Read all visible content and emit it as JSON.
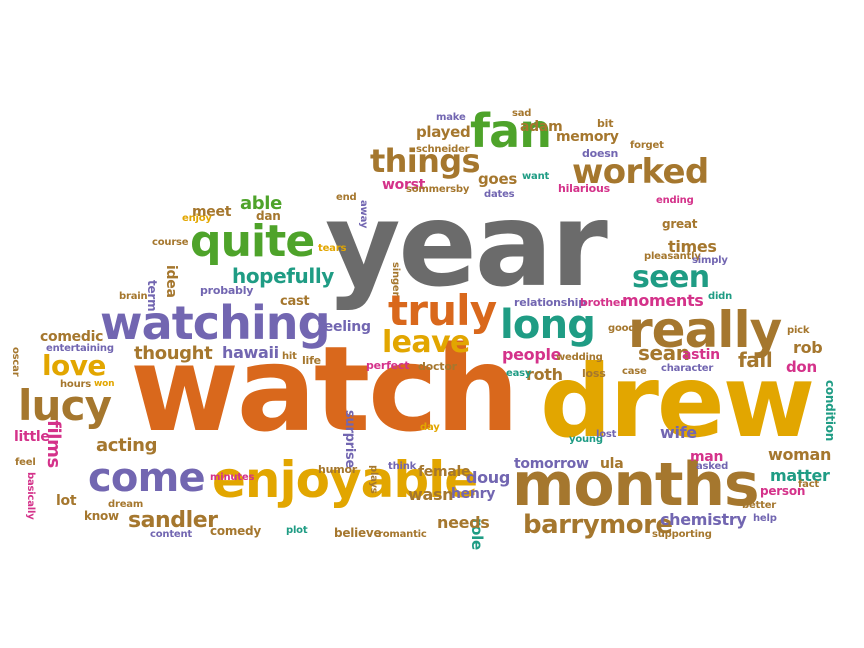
{
  "palette": {
    "gray": "#6b6b6b",
    "orange": "#d9681c",
    "gold": "#e2a600",
    "green": "#4ea32a",
    "purple": "#7266b1",
    "brown": "#a5772e",
    "teal": "#1f9c84",
    "pink": "#d4328a"
  },
  "words": [
    {
      "t": "year",
      "c": "gray"
    },
    {
      "t": "watch",
      "c": "orange"
    },
    {
      "t": "drew",
      "c": "gold"
    },
    {
      "t": "months",
      "c": "brown"
    },
    {
      "t": "enjoyable",
      "c": "gold"
    },
    {
      "t": "watching",
      "c": "purple"
    },
    {
      "t": "really",
      "c": "brown"
    },
    {
      "t": "fan",
      "c": "green"
    },
    {
      "t": "quite",
      "c": "green"
    },
    {
      "t": "long",
      "c": "teal"
    },
    {
      "t": "truly",
      "c": "orange"
    },
    {
      "t": "worked",
      "c": "brown"
    },
    {
      "t": "things",
      "c": "brown"
    },
    {
      "t": "come",
      "c": "purple"
    },
    {
      "t": "lucy",
      "c": "brown"
    },
    {
      "t": "love",
      "c": "gold"
    },
    {
      "t": "leave",
      "c": "gold"
    },
    {
      "t": "seen",
      "c": "teal"
    },
    {
      "t": "barrymore",
      "c": "brown"
    },
    {
      "t": "sandler",
      "c": "brown"
    },
    {
      "t": "sean",
      "c": "brown"
    },
    {
      "t": "hopefully",
      "c": "teal"
    },
    {
      "t": "able",
      "c": "green"
    },
    {
      "t": "thought",
      "c": "brown"
    },
    {
      "t": "acting",
      "c": "brown"
    },
    {
      "t": "films",
      "c": "pink"
    },
    {
      "t": "people",
      "c": "pink"
    },
    {
      "t": "moments",
      "c": "pink"
    },
    {
      "t": "played",
      "c": "brown"
    },
    {
      "t": "memory",
      "c": "brown"
    },
    {
      "t": "adam",
      "c": "brown"
    },
    {
      "t": "goes",
      "c": "brown"
    },
    {
      "t": "worst",
      "c": "pink"
    },
    {
      "t": "hawaii",
      "c": "purple"
    },
    {
      "t": "comedic",
      "c": "brown"
    },
    {
      "t": "fall",
      "c": "brown"
    },
    {
      "t": "rob",
      "c": "brown"
    },
    {
      "t": "don",
      "c": "pink"
    },
    {
      "t": "wife",
      "c": "purple"
    },
    {
      "t": "woman",
      "c": "brown"
    },
    {
      "t": "matter",
      "c": "teal"
    },
    {
      "t": "person",
      "c": "pink"
    },
    {
      "t": "chemistry",
      "c": "purple"
    },
    {
      "t": "role",
      "c": "teal"
    },
    {
      "t": "needs",
      "c": "brown"
    },
    {
      "t": "wasn",
      "c": "brown"
    },
    {
      "t": "doug",
      "c": "purple"
    },
    {
      "t": "henry",
      "c": "purple"
    },
    {
      "t": "female",
      "c": "brown"
    },
    {
      "t": "surprise",
      "c": "purple"
    },
    {
      "t": "roth",
      "c": "brown"
    },
    {
      "t": "astin",
      "c": "pink"
    },
    {
      "t": "tomorrow",
      "c": "purple"
    },
    {
      "t": "ula",
      "c": "brown"
    },
    {
      "t": "man",
      "c": "pink"
    },
    {
      "t": "feeling",
      "c": "purple"
    },
    {
      "t": "cast",
      "c": "brown"
    },
    {
      "t": "idea",
      "c": "brown"
    },
    {
      "t": "term",
      "c": "purple"
    },
    {
      "t": "meet",
      "c": "brown"
    },
    {
      "t": "dan",
      "c": "brown"
    },
    {
      "t": "times",
      "c": "brown"
    },
    {
      "t": "great",
      "c": "brown"
    },
    {
      "t": "little",
      "c": "pink"
    },
    {
      "t": "lot",
      "c": "brown"
    },
    {
      "t": "know",
      "c": "brown"
    },
    {
      "t": "comedy",
      "c": "brown"
    },
    {
      "t": "believe",
      "c": "brown"
    },
    {
      "t": "condition",
      "c": "teal"
    },
    {
      "t": "bit",
      "c": "brown"
    },
    {
      "t": "forget",
      "c": "brown"
    },
    {
      "t": "doesn",
      "c": "purple"
    },
    {
      "t": "sad",
      "c": "brown"
    },
    {
      "t": "make",
      "c": "purple"
    },
    {
      "t": "schneider",
      "c": "brown"
    },
    {
      "t": "sommersby",
      "c": "brown"
    },
    {
      "t": "dates",
      "c": "purple"
    },
    {
      "t": "want",
      "c": "teal"
    },
    {
      "t": "hilarious",
      "c": "pink"
    },
    {
      "t": "end",
      "c": "brown"
    },
    {
      "t": "away",
      "c": "purple"
    },
    {
      "t": "ending",
      "c": "pink"
    },
    {
      "t": "enjoy",
      "c": "gold"
    },
    {
      "t": "course",
      "c": "brown"
    },
    {
      "t": "tears",
      "c": "gold"
    },
    {
      "t": "singer",
      "c": "brown"
    },
    {
      "t": "pleasantly",
      "c": "brown"
    },
    {
      "t": "simply",
      "c": "purple"
    },
    {
      "t": "probably",
      "c": "purple"
    },
    {
      "t": "brain",
      "c": "brown"
    },
    {
      "t": "relationship",
      "c": "purple"
    },
    {
      "t": "brother",
      "c": "pink"
    },
    {
      "t": "didn",
      "c": "teal"
    },
    {
      "t": "pick",
      "c": "brown"
    },
    {
      "t": "good",
      "c": "brown"
    },
    {
      "t": "character",
      "c": "purple"
    },
    {
      "t": "case",
      "c": "brown"
    },
    {
      "t": "loss",
      "c": "brown"
    },
    {
      "t": "wedding",
      "c": "brown"
    },
    {
      "t": "doctor",
      "c": "brown"
    },
    {
      "t": "perfect",
      "c": "pink"
    },
    {
      "t": "life",
      "c": "brown"
    },
    {
      "t": "hit",
      "c": "brown"
    },
    {
      "t": "easy",
      "c": "teal"
    },
    {
      "t": "entertaining",
      "c": "purple"
    },
    {
      "t": "oscar",
      "c": "brown"
    },
    {
      "t": "hours",
      "c": "brown"
    },
    {
      "t": "won",
      "c": "gold"
    },
    {
      "t": "feel",
      "c": "brown"
    },
    {
      "t": "basically",
      "c": "pink"
    },
    {
      "t": "dream",
      "c": "brown"
    },
    {
      "t": "content",
      "c": "purple"
    },
    {
      "t": "minutes",
      "c": "pink"
    },
    {
      "t": "humor",
      "c": "brown"
    },
    {
      "t": "plays",
      "c": "brown"
    },
    {
      "t": "think",
      "c": "purple"
    },
    {
      "t": "day",
      "c": "gold"
    },
    {
      "t": "plot",
      "c": "teal"
    },
    {
      "t": "romantic",
      "c": "brown"
    },
    {
      "t": "young",
      "c": "teal"
    },
    {
      "t": "lost",
      "c": "purple"
    },
    {
      "t": "asked",
      "c": "purple"
    },
    {
      "t": "better",
      "c": "brown"
    },
    {
      "t": "help",
      "c": "purple"
    },
    {
      "t": "supporting",
      "c": "brown"
    },
    {
      "t": "fact",
      "c": "brown"
    }
  ]
}
